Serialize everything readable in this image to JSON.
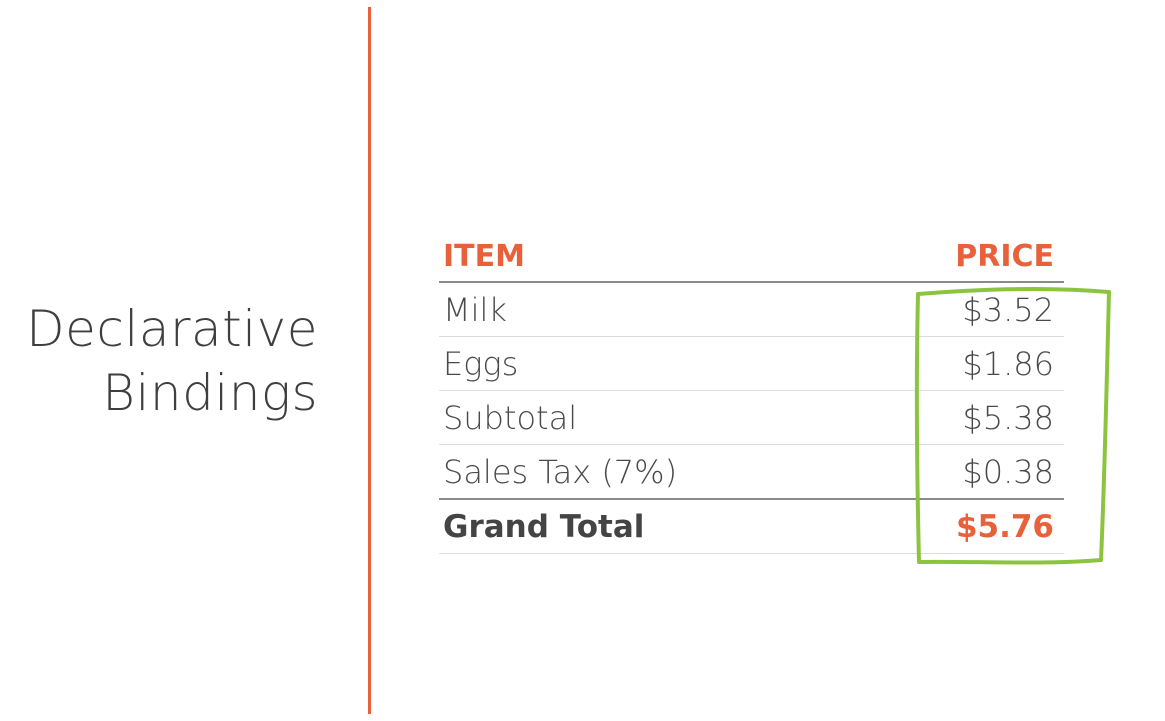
{
  "slide": {
    "title_line1": "Declarative",
    "title_line2": "Bindings"
  },
  "table": {
    "headers": {
      "item": "ITEM",
      "price": "PRICE"
    },
    "rows": [
      {
        "item": "Milk",
        "price": "$3.52"
      },
      {
        "item": "Eggs",
        "price": "$1.86"
      },
      {
        "item": "Subtotal",
        "price": "$5.38"
      },
      {
        "item": "Sales Tax (7%)",
        "price": "$0.38"
      }
    ],
    "total": {
      "item": "Grand Total",
      "price": "$5.76"
    }
  },
  "colors": {
    "accent": "#e8613a",
    "highlight": "#8cc43f",
    "text": "#4a4a4a"
  },
  "annotation": {
    "type": "hand-drawn-box",
    "color": "#8cc43f",
    "target": "price-column"
  }
}
